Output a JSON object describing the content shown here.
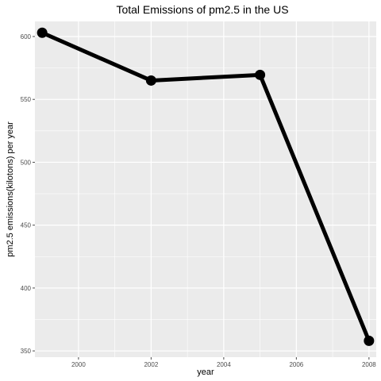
{
  "chart_data": {
    "type": "line",
    "title": "Total Emissions of pm2.5 in the US",
    "xlabel": "year",
    "ylabel": "pm2.5 emissions(kilotons) per year",
    "x": [
      1999,
      2002,
      2005,
      2008
    ],
    "series": [
      {
        "values": [
          603,
          565,
          569.5,
          358
        ]
      }
    ],
    "xlim": [
      1998.8,
      2008.2
    ],
    "ylim": [
      345,
      612
    ],
    "x_ticks": [
      2000,
      2002,
      2004,
      2006,
      2008
    ],
    "y_ticks": [
      350,
      400,
      450,
      500,
      550,
      600
    ],
    "x_tick_labels": [
      "2000",
      "2002",
      "2004",
      "2006",
      "2008"
    ],
    "y_tick_labels": [
      "350",
      "400",
      "450",
      "500",
      "550",
      "600"
    ],
    "grid": true,
    "colors": {
      "panel": "#ebebeb",
      "grid": "#ffffff",
      "line": "#000000",
      "ticks": "#4d4d4d"
    },
    "marker": "circle"
  }
}
